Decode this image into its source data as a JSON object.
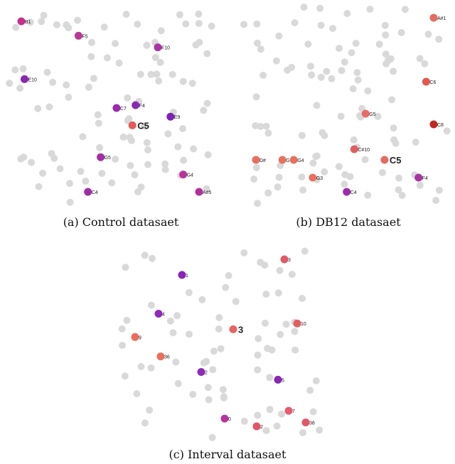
{
  "chart_data": [
    {
      "type": "scatter",
      "caption": "(a) Control datasaet",
      "highlighted": [
        {
          "label": "B1",
          "x": 0.49,
          "y": 0.92,
          "color": "#c7308a"
        },
        {
          "label": "F5",
          "x": 0.67,
          "y": 0.87,
          "color": "#b83a96"
        },
        {
          "label": "F10",
          "x": 0.92,
          "y": 0.83,
          "color": "#a833a8"
        },
        {
          "label": "E10",
          "x": 0.5,
          "y": 0.72,
          "color": "#8a26b0"
        },
        {
          "label": "C7",
          "x": 0.79,
          "y": 0.62,
          "color": "#9a2cb0"
        },
        {
          "label": "F4",
          "x": 0.85,
          "y": 0.63,
          "color": "#8e28b4"
        },
        {
          "label": "E9",
          "x": 0.96,
          "y": 0.59,
          "color": "#7e22b8"
        },
        {
          "label": "C5",
          "x": 0.84,
          "y": 0.56,
          "color": "#e65a5a"
        },
        {
          "label": "G5",
          "x": 0.74,
          "y": 0.45,
          "color": "#a230a4"
        },
        {
          "label": "G4",
          "x": 1.0,
          "y": 0.39,
          "color": "#b8349c"
        },
        {
          "label": "C4",
          "x": 0.7,
          "y": 0.33,
          "color": "#a02ca8"
        },
        {
          "label": "A#5",
          "x": 1.05,
          "y": 0.33,
          "color": "#b23099"
        }
      ]
    },
    {
      "type": "scatter",
      "caption": "(b) DB12 datasaet",
      "highlighted": [
        {
          "label": "A#1",
          "x": 0.95,
          "y": 0.65,
          "color": "#e56a62"
        },
        {
          "label": "C6",
          "x": 0.93,
          "y": 0.47,
          "color": "#e2584f"
        },
        {
          "label": "C8",
          "x": 0.95,
          "y": 0.35,
          "color": "#c22820"
        },
        {
          "label": "G5",
          "x": 0.77,
          "y": 0.38,
          "color": "#e86a6a"
        },
        {
          "label": "C#10",
          "x": 0.74,
          "y": 0.28,
          "color": "#e25e5e"
        },
        {
          "label": "C5",
          "x": 0.82,
          "y": 0.25,
          "color": "#e66a62"
        },
        {
          "label": "D#",
          "x": 0.48,
          "y": 0.25,
          "color": "#eb6f60"
        },
        {
          "label": "G",
          "x": 0.55,
          "y": 0.25,
          "color": "#e8705e"
        },
        {
          "label": "G4",
          "x": 0.58,
          "y": 0.25,
          "color": "#eb6f60"
        },
        {
          "label": "G3",
          "x": 0.63,
          "y": 0.2,
          "color": "#eb6f60"
        },
        {
          "label": "F4",
          "x": 0.91,
          "y": 0.2,
          "color": "#a834a4"
        },
        {
          "label": "C4",
          "x": 0.72,
          "y": 0.16,
          "color": "#9c2ca8"
        }
      ]
    },
    {
      "type": "scatter",
      "caption": "(c) Interval datasaet",
      "highlighted": [
        {
          "label": "1",
          "x": 0.38,
          "y": 0.82,
          "color": "#8a26b8"
        },
        {
          "label": "3",
          "x": 0.86,
          "y": 0.9,
          "color": "#e05a66"
        },
        {
          "label": "4",
          "x": 0.27,
          "y": 0.62,
          "color": "#8e2ab6"
        },
        {
          "label": "9",
          "x": 0.16,
          "y": 0.5,
          "color": "#ec6b5e"
        },
        {
          "label": "3",
          "x": 0.62,
          "y": 0.54,
          "color": "#e8645e"
        },
        {
          "label": "10",
          "x": 0.92,
          "y": 0.57,
          "color": "#e25e62"
        },
        {
          "label": "36",
          "x": 0.28,
          "y": 0.4,
          "color": "#eb6e5c"
        },
        {
          "label": "2",
          "x": 0.47,
          "y": 0.32,
          "color": "#8e2ab8"
        },
        {
          "label": "5",
          "x": 0.83,
          "y": 0.28,
          "color": "#8a26b8"
        },
        {
          "label": "0",
          "x": 0.58,
          "y": 0.08,
          "color": "#b8349e"
        },
        {
          "label": "2",
          "x": 0.73,
          "y": 0.04,
          "color": "#e2566a"
        },
        {
          "label": "7",
          "x": 0.88,
          "y": 0.12,
          "color": "#e85a6e"
        },
        {
          "label": "38",
          "x": 0.96,
          "y": 0.06,
          "color": "#e2566a"
        }
      ]
    }
  ]
}
